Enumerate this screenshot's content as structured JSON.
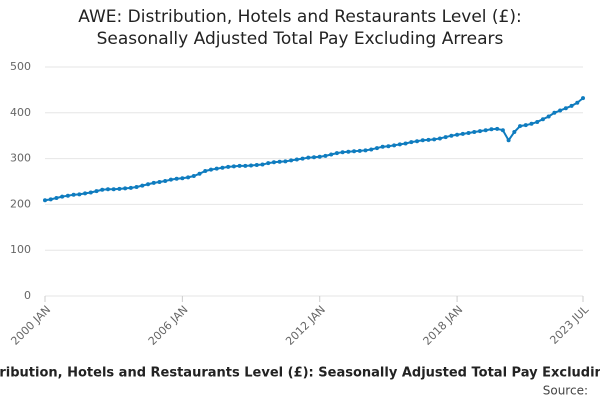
{
  "chart_data": {
    "type": "line",
    "title": "AWE: Distribution, Hotels and Restaurants Level (£): Seasonally Adjusted Total Pay Excluding Arrears",
    "x_label": "AWE: Distribution, Hotels and Restaurants Level (£): Seasonally Adjusted Total Pay Excluding Arrears",
    "source": "Source:",
    "color": "#0f7cbf",
    "categories": [
      "2000 JAN",
      "2000 APR",
      "2000 JUL",
      "2000 OCT",
      "2001 JAN",
      "2001 APR",
      "2001 JUL",
      "2001 OCT",
      "2002 JAN",
      "2002 APR",
      "2002 JUL",
      "2002 OCT",
      "2003 JAN",
      "2003 APR",
      "2003 JUL",
      "2003 OCT",
      "2004 JAN",
      "2004 APR",
      "2004 JUL",
      "2004 OCT",
      "2005 JAN",
      "2005 APR",
      "2005 JUL",
      "2005 OCT",
      "2006 JAN",
      "2006 APR",
      "2006 JUL",
      "2006 OCT",
      "2007 JAN",
      "2007 APR",
      "2007 JUL",
      "2007 OCT",
      "2008 JAN",
      "2008 APR",
      "2008 JUL",
      "2008 OCT",
      "2009 JAN",
      "2009 APR",
      "2009 JUL",
      "2009 OCT",
      "2010 JAN",
      "2010 APR",
      "2010 JUL",
      "2010 OCT",
      "2011 JAN",
      "2011 APR",
      "2011 JUL",
      "2011 OCT",
      "2012 JAN",
      "2012 APR",
      "2012 JUL",
      "2012 OCT",
      "2013 JAN",
      "2013 APR",
      "2013 JUL",
      "2013 OCT",
      "2014 JAN",
      "2014 APR",
      "2014 JUL",
      "2014 OCT",
      "2015 JAN",
      "2015 APR",
      "2015 JUL",
      "2015 OCT",
      "2016 JAN",
      "2016 APR",
      "2016 JUL",
      "2016 OCT",
      "2017 JAN",
      "2017 APR",
      "2017 JUL",
      "2017 OCT",
      "2018 JAN",
      "2018 APR",
      "2018 JUL",
      "2018 OCT",
      "2019 JAN",
      "2019 APR",
      "2019 JUL",
      "2019 OCT",
      "2020 JAN",
      "2020 APR",
      "2020 JUL",
      "2020 OCT",
      "2021 JAN",
      "2021 APR",
      "2021 JUL",
      "2021 OCT",
      "2022 JAN",
      "2022 APR",
      "2022 JUL",
      "2022 OCT",
      "2023 JAN",
      "2023 APR",
      "2023 JUL"
    ],
    "values": [
      209,
      211,
      214,
      217,
      219,
      221,
      222,
      224,
      226,
      229,
      232,
      233,
      233,
      234,
      235,
      236,
      238,
      241,
      244,
      247,
      249,
      251,
      254,
      256,
      257,
      259,
      262,
      267,
      273,
      276,
      278,
      280,
      282,
      283,
      284,
      284,
      285,
      286,
      287,
      290,
      292,
      293,
      294,
      296,
      298,
      300,
      302,
      303,
      304,
      306,
      309,
      312,
      314,
      315,
      316,
      317,
      318,
      320,
      323,
      326,
      327,
      329,
      331,
      333,
      336,
      338,
      340,
      341,
      342,
      344,
      347,
      350,
      352,
      354,
      356,
      358,
      360,
      362,
      364,
      365,
      362,
      340,
      358,
      371,
      373,
      376,
      380,
      386,
      392,
      400,
      405,
      410,
      415,
      422,
      432
    ],
    "xticks": [
      "2000 JAN",
      "2006 JAN",
      "2012 JAN",
      "2018 JAN",
      "2023 JUL"
    ],
    "ylim": [
      0,
      500
    ],
    "yticks": [
      0,
      100,
      200,
      300,
      400,
      500
    ],
    "grid": true
  }
}
